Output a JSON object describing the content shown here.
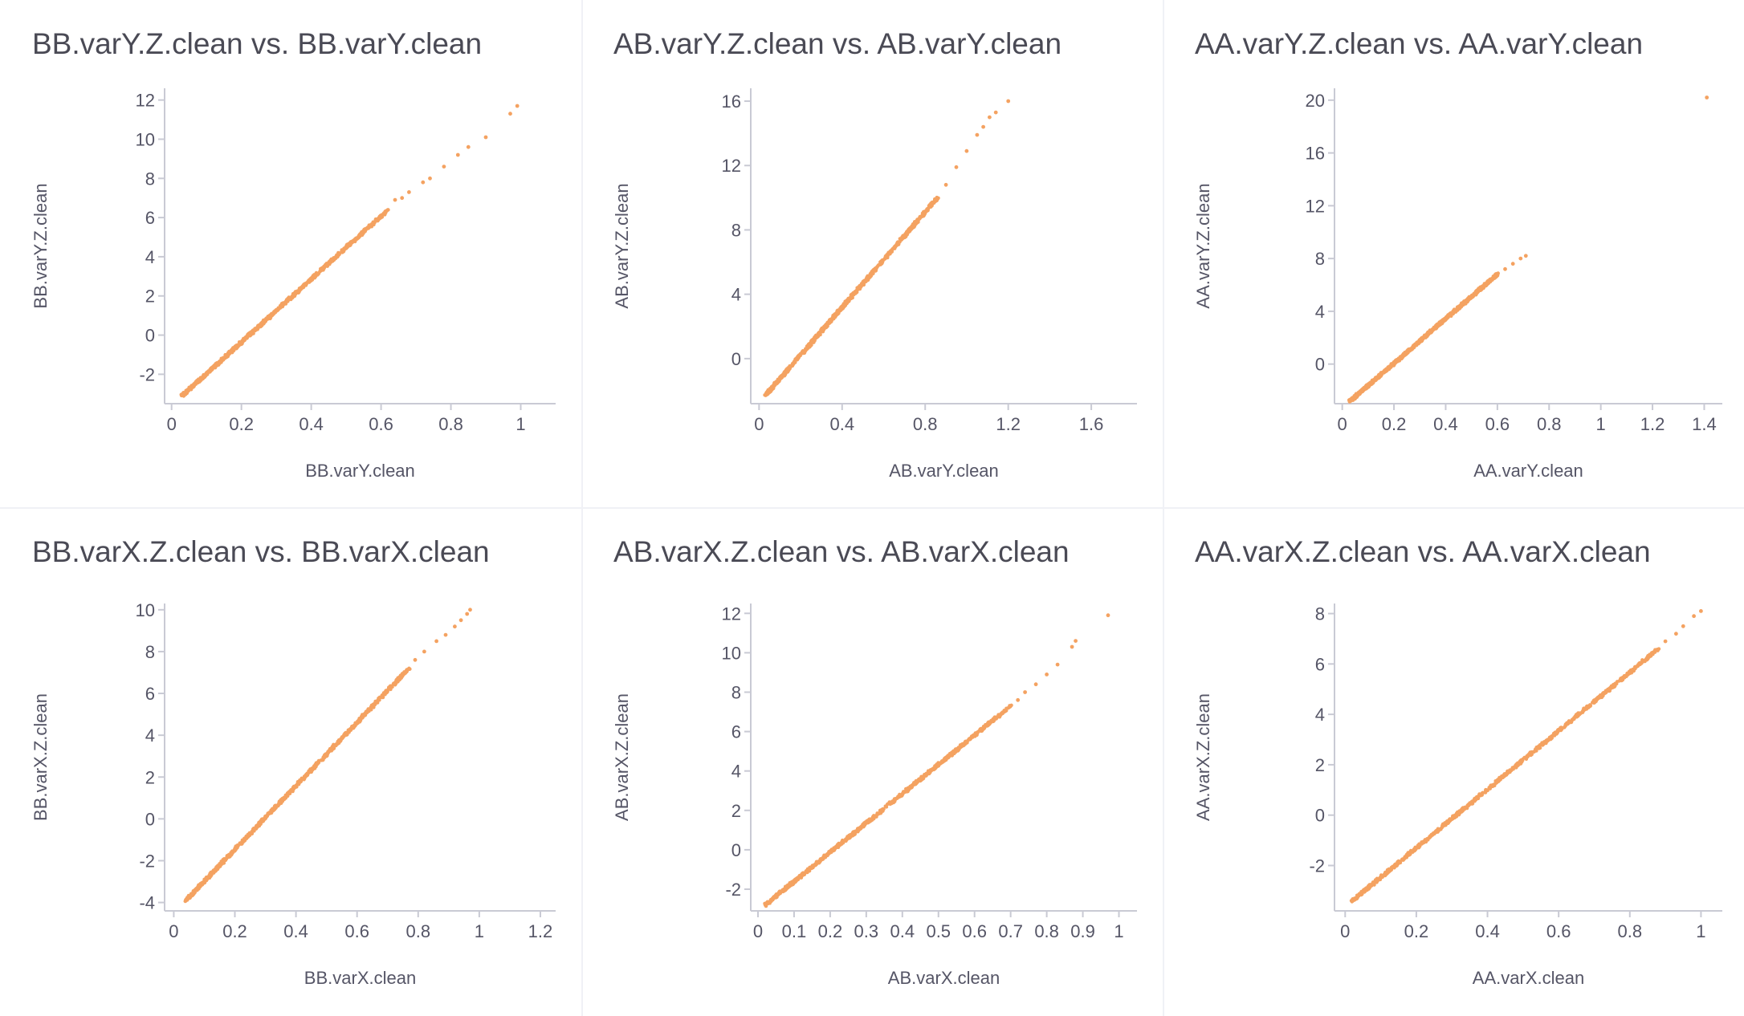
{
  "point_color": "#f4a261",
  "chart_data": [
    {
      "type": "scatter",
      "title": "BB.varY.Z.clean vs. BB.varY.clean",
      "xlabel": "BB.varY.clean",
      "ylabel": "BB.varY.Z.clean",
      "xlim": [
        -0.02,
        1.1
      ],
      "ylim": [
        -3.5,
        12.6
      ],
      "xticks": [
        0,
        0.2,
        0.4,
        0.6,
        0.8,
        1
      ],
      "yticks": [
        -2,
        0,
        2,
        4,
        6,
        8,
        10,
        12
      ],
      "dense": {
        "x": [
          0.03,
          0.62
        ],
        "y": [
          -3.1,
          6.4
        ]
      },
      "outliers": [
        [
          0.64,
          6.9
        ],
        [
          0.66,
          7.0
        ],
        [
          0.68,
          7.3
        ],
        [
          0.72,
          7.8
        ],
        [
          0.74,
          8.0
        ],
        [
          0.78,
          8.6
        ],
        [
          0.82,
          9.2
        ],
        [
          0.85,
          9.6
        ],
        [
          0.9,
          10.1
        ],
        [
          0.97,
          11.3
        ],
        [
          0.99,
          11.7
        ]
      ]
    },
    {
      "type": "scatter",
      "title": "AB.varY.Z.clean vs. AB.varY.clean",
      "xlabel": "AB.varY.clean",
      "ylabel": "AB.varY.Z.clean",
      "xlim": [
        -0.04,
        1.82
      ],
      "ylim": [
        -2.8,
        16.8
      ],
      "xticks": [
        0,
        0.4,
        0.8,
        1.2,
        1.6
      ],
      "yticks": [
        0,
        4,
        8,
        12,
        16
      ],
      "dense": {
        "x": [
          0.03,
          0.86
        ],
        "y": [
          -2.3,
          10.0
        ]
      },
      "outliers": [
        [
          0.9,
          10.8
        ],
        [
          0.95,
          11.9
        ],
        [
          1.0,
          12.9
        ],
        [
          1.05,
          13.9
        ],
        [
          1.08,
          14.4
        ],
        [
          1.11,
          15.0
        ],
        [
          1.14,
          15.3
        ],
        [
          1.2,
          16.0
        ]
      ]
    },
    {
      "type": "scatter",
      "title": "AA.varY.Z.clean vs. AA.varY.clean",
      "xlabel": "AA.varY.clean",
      "ylabel": "AA.varY.Z.clean",
      "xlim": [
        -0.03,
        1.47
      ],
      "ylim": [
        -3.0,
        20.9
      ],
      "xticks": [
        0,
        0.2,
        0.4,
        0.6,
        0.8,
        1,
        1.2,
        1.4
      ],
      "yticks": [
        0,
        4,
        8,
        12,
        16,
        20
      ],
      "dense": {
        "x": [
          0.03,
          0.6
        ],
        "y": [
          -2.8,
          6.8
        ]
      },
      "outliers": [
        [
          0.63,
          7.2
        ],
        [
          0.66,
          7.6
        ],
        [
          0.69,
          8.0
        ],
        [
          0.71,
          8.2
        ],
        [
          1.41,
          20.2
        ]
      ]
    },
    {
      "type": "scatter",
      "title": "BB.varX.Z.clean vs. BB.varX.clean",
      "xlabel": "BB.varX.clean",
      "ylabel": "BB.varX.Z.clean",
      "xlim": [
        -0.03,
        1.25
      ],
      "ylim": [
        -4.4,
        10.3
      ],
      "xticks": [
        0,
        0.2,
        0.4,
        0.6,
        0.8,
        1,
        1.2
      ],
      "yticks": [
        -4,
        -2,
        0,
        2,
        4,
        6,
        8,
        10
      ],
      "dense": {
        "x": [
          0.04,
          0.77
        ],
        "y": [
          -3.9,
          7.2
        ]
      },
      "outliers": [
        [
          0.79,
          7.6
        ],
        [
          0.82,
          8.0
        ],
        [
          0.86,
          8.5
        ],
        [
          0.89,
          8.8
        ],
        [
          0.92,
          9.2
        ],
        [
          0.94,
          9.5
        ],
        [
          0.96,
          9.8
        ],
        [
          0.97,
          10.0
        ]
      ]
    },
    {
      "type": "scatter",
      "title": "AB.varX.Z.clean vs. AB.varX.clean",
      "xlabel": "AB.varX.clean",
      "ylabel": "AB.varX.Z.clean",
      "xlim": [
        -0.02,
        1.05
      ],
      "ylim": [
        -3.1,
        12.5
      ],
      "xticks": [
        0,
        0.1,
        0.2,
        0.3,
        0.4,
        0.5,
        0.6,
        0.7,
        0.8,
        0.9,
        1
      ],
      "yticks": [
        -2,
        0,
        2,
        4,
        6,
        8,
        10,
        12
      ],
      "dense": {
        "x": [
          0.02,
          0.7
        ],
        "y": [
          -2.8,
          7.3
        ]
      },
      "outliers": [
        [
          0.72,
          7.6
        ],
        [
          0.74,
          8.0
        ],
        [
          0.77,
          8.4
        ],
        [
          0.8,
          8.9
        ],
        [
          0.83,
          9.4
        ],
        [
          0.87,
          10.3
        ],
        [
          0.88,
          10.6
        ],
        [
          0.97,
          11.9
        ]
      ]
    },
    {
      "type": "scatter",
      "title": "AA.varX.Z.clean vs. AA.varX.clean",
      "xlabel": "AA.varX.clean",
      "ylabel": "AA.varX.Z.clean",
      "xlim": [
        -0.03,
        1.06
      ],
      "ylim": [
        -3.8,
        8.4
      ],
      "xticks": [
        0,
        0.2,
        0.4,
        0.6,
        0.8,
        1
      ],
      "yticks": [
        -2,
        0,
        2,
        4,
        6,
        8
      ],
      "dense": {
        "x": [
          0.02,
          0.88
        ],
        "y": [
          -3.4,
          6.6
        ]
      },
      "outliers": [
        [
          0.9,
          6.9
        ],
        [
          0.93,
          7.2
        ],
        [
          0.95,
          7.5
        ],
        [
          0.98,
          7.9
        ],
        [
          1.0,
          8.1
        ]
      ]
    }
  ]
}
